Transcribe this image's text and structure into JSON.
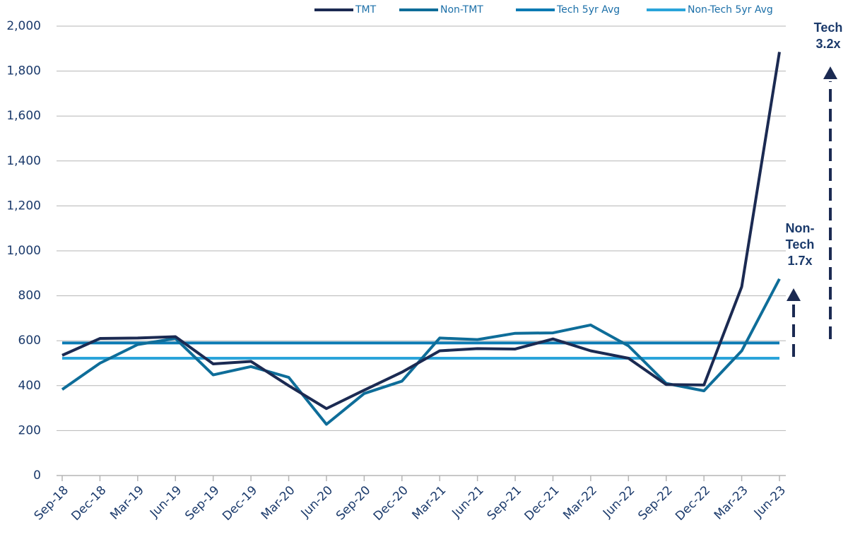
{
  "chart_data": {
    "type": "line",
    "categories": [
      "Sep-18",
      "Dec-18",
      "Mar-19",
      "Jun-19",
      "Sep-19",
      "Dec-19",
      "Mar-20",
      "Jun-20",
      "Sep-20",
      "Dec-20",
      "Mar-21",
      "Jun-21",
      "Sep-21",
      "Dec-21",
      "Mar-22",
      "Jun-22",
      "Sep-22",
      "Dec-22",
      "Mar-23",
      "Jun-23"
    ],
    "series": [
      {
        "name": "TMT",
        "color": "#1b2a52",
        "values": [
          535,
          610,
          612,
          618,
          497,
          508,
          400,
          298,
          380,
          460,
          555,
          565,
          563,
          608,
          555,
          522,
          405,
          403,
          840,
          1885
        ]
      },
      {
        "name": "Non-TMT",
        "color": "#0e6d99",
        "values": [
          383,
          500,
          583,
          610,
          448,
          485,
          437,
          228,
          365,
          420,
          612,
          605,
          633,
          635,
          670,
          577,
          410,
          377,
          555,
          875
        ]
      },
      {
        "name": "Tech 5yr Avg",
        "color": "#0b7ab3",
        "values": [
          590,
          590,
          590,
          590,
          590,
          590,
          590,
          590,
          590,
          590,
          590,
          590,
          590,
          590,
          590,
          590,
          590,
          590,
          590,
          590
        ]
      },
      {
        "name": "Non-Tech 5yr Avg",
        "color": "#2aa4da",
        "values": [
          522,
          522,
          522,
          522,
          522,
          522,
          522,
          522,
          522,
          522,
          522,
          522,
          522,
          522,
          522,
          522,
          522,
          522,
          522,
          522
        ]
      }
    ],
    "ylim": [
      0,
      2000
    ],
    "yticks": [
      0,
      200,
      400,
      600,
      800,
      {
        "value": 1000,
        "label": "1,000"
      },
      {
        "value": 1200,
        "label": "1,200"
      },
      {
        "value": 1400,
        "label": "1,400"
      },
      {
        "value": 1600,
        "label": "1,600"
      },
      {
        "value": 1800,
        "label": "1,800"
      },
      {
        "value": 2000,
        "label": "2,000"
      }
    ],
    "grid": true,
    "legend": "top-right",
    "annotations": [
      {
        "lines": [
          "Tech",
          "3.2x"
        ]
      },
      {
        "lines": [
          "Non-",
          "Tech",
          "1.7x"
        ]
      }
    ]
  }
}
